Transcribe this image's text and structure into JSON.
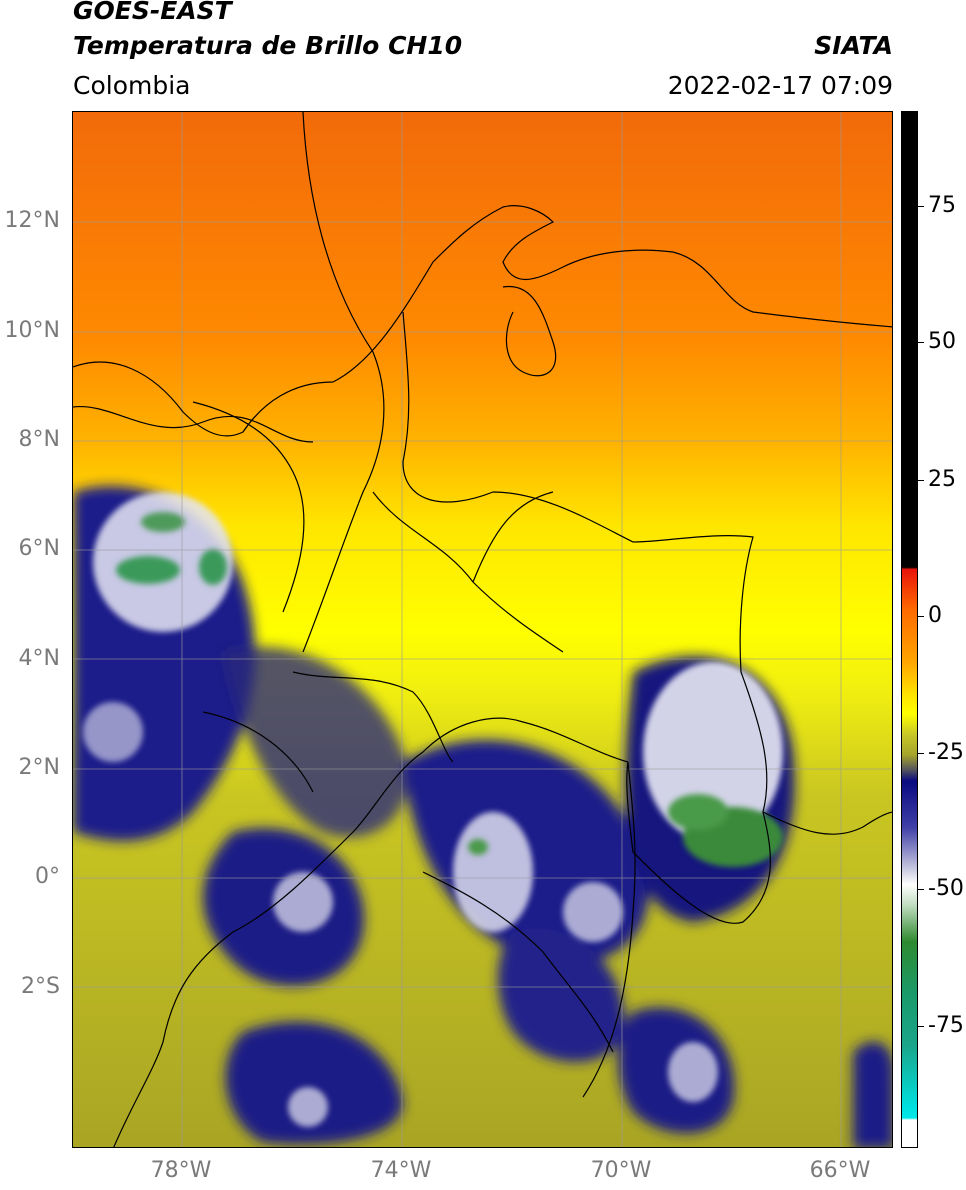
{
  "header": {
    "satellite": "GOES-EAST",
    "product": "Temperatura de Brillo CH10",
    "agency": "SIATA",
    "region": "Colombia",
    "datetime": "2022-02-17 07:09"
  },
  "map": {
    "lat_range": [
      -5,
      14
    ],
    "lon_range": [
      -80,
      -65
    ],
    "lat_labels": [
      "12°N",
      "10°N",
      "8°N",
      "6°N",
      "4°N",
      "2°N",
      "0°",
      "2°S"
    ],
    "lon_labels": [
      "78°W",
      "74°W",
      "70°W",
      "66°W"
    ]
  },
  "colorbar": {
    "labels": [
      "75",
      "50",
      "25",
      "0",
      "-25",
      "-50",
      "-75"
    ],
    "colors": {
      "black": "#000000",
      "red": "#e8140a",
      "orange": "#ff8c00",
      "yellow": "#ffff00",
      "olive": "#a8a620",
      "navy": "#0a0a80",
      "white": "#ffffff",
      "green": "#2f8a2f",
      "teal": "#1aa58a",
      "cyan": "#00e0e0"
    }
  }
}
